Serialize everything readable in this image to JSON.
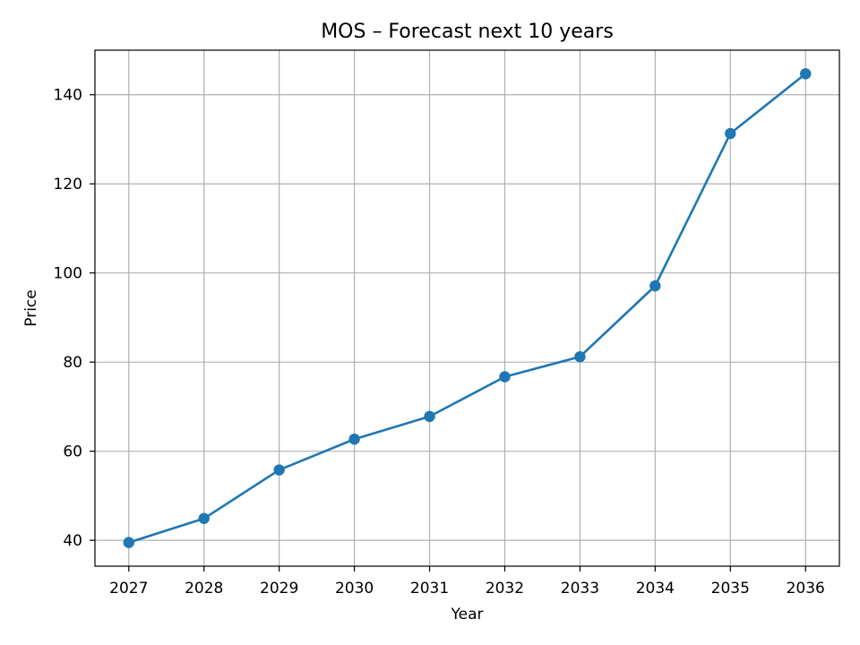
{
  "chart_data": {
    "type": "line",
    "title": "MOS – Forecast next 10 years",
    "xlabel": "Year",
    "ylabel": "Price",
    "x": [
      2027,
      2028,
      2029,
      2030,
      2031,
      2032,
      2033,
      2034,
      2035,
      2036
    ],
    "series": [
      {
        "values": [
          39.5,
          44.9,
          55.8,
          62.7,
          67.8,
          76.7,
          81.2,
          97.1,
          131.3,
          144.7
        ],
        "color": "#1f77b4"
      }
    ],
    "xticks": [
      2027,
      2028,
      2029,
      2030,
      2031,
      2032,
      2033,
      2034,
      2035,
      2036
    ],
    "yticks": [
      40,
      60,
      80,
      100,
      120,
      140
    ],
    "xlim": [
      2026.55,
      2036.45
    ],
    "ylim": [
      34.2,
      150.0
    ],
    "grid": true,
    "markers": "circle"
  }
}
